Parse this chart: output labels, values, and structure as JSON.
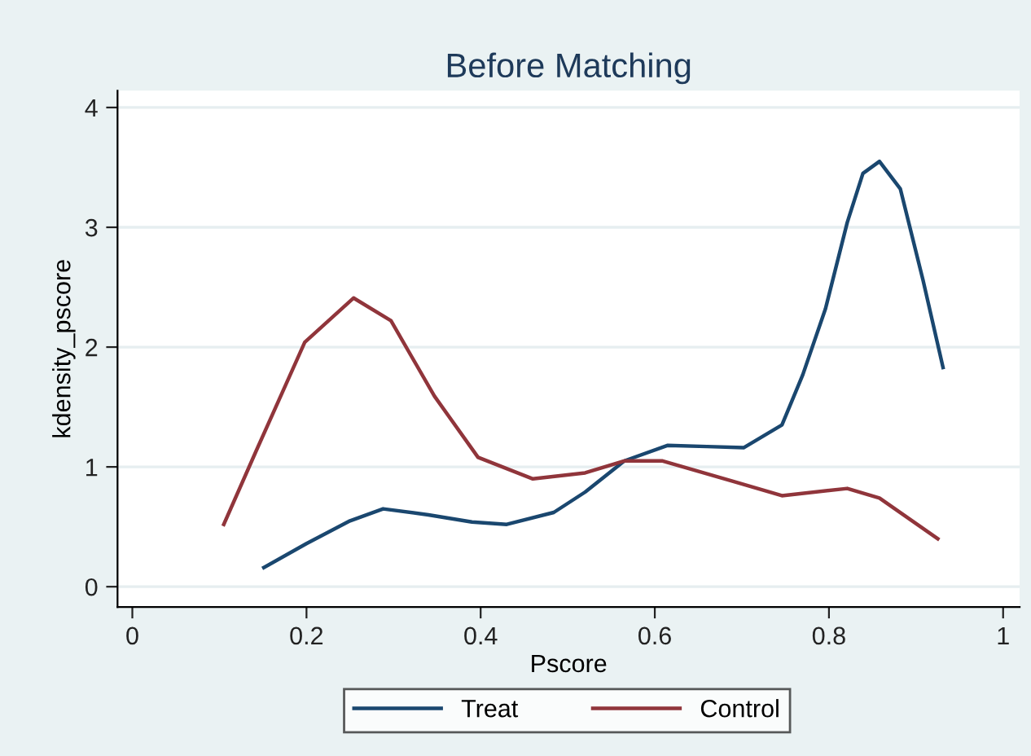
{
  "chart_data": {
    "type": "line",
    "title": "Before Matching",
    "xlabel": "Pscore",
    "ylabel": "kdensity_pscore",
    "xlim": [
      -0.017,
      1.019
    ],
    "ylim": [
      -0.17,
      4.14
    ],
    "xticks": [
      0,
      0.2,
      0.4,
      0.6,
      0.8,
      1
    ],
    "yticks": [
      0,
      1,
      2,
      3,
      4
    ],
    "grid": "y",
    "legend": "bottom",
    "marker": "none",
    "line_style": "solid",
    "series": [
      {
        "name": "Treat",
        "color": "#1a476f",
        "x": [
          0.151,
          0.2,
          0.25,
          0.288,
          0.34,
          0.39,
          0.43,
          0.484,
          0.52,
          0.565,
          0.615,
          0.66,
          0.702,
          0.746,
          0.77,
          0.796,
          0.821,
          0.839,
          0.858,
          0.882,
          0.908,
          0.931
        ],
        "values": [
          0.16,
          0.36,
          0.55,
          0.65,
          0.6,
          0.54,
          0.52,
          0.62,
          0.79,
          1.05,
          1.18,
          1.17,
          1.16,
          1.35,
          1.77,
          2.32,
          3.04,
          3.45,
          3.55,
          3.32,
          2.56,
          1.83
        ]
      },
      {
        "name": "Control",
        "color": "#90353b",
        "x": [
          0.105,
          0.142,
          0.198,
          0.254,
          0.297,
          0.347,
          0.397,
          0.46,
          0.52,
          0.565,
          0.609,
          0.69,
          0.746,
          0.821,
          0.858,
          0.925
        ],
        "values": [
          0.52,
          1.13,
          2.04,
          2.41,
          2.22,
          1.59,
          1.08,
          0.9,
          0.95,
          1.05,
          1.05,
          0.88,
          0.76,
          0.82,
          0.74,
          0.4
        ]
      }
    ]
  }
}
